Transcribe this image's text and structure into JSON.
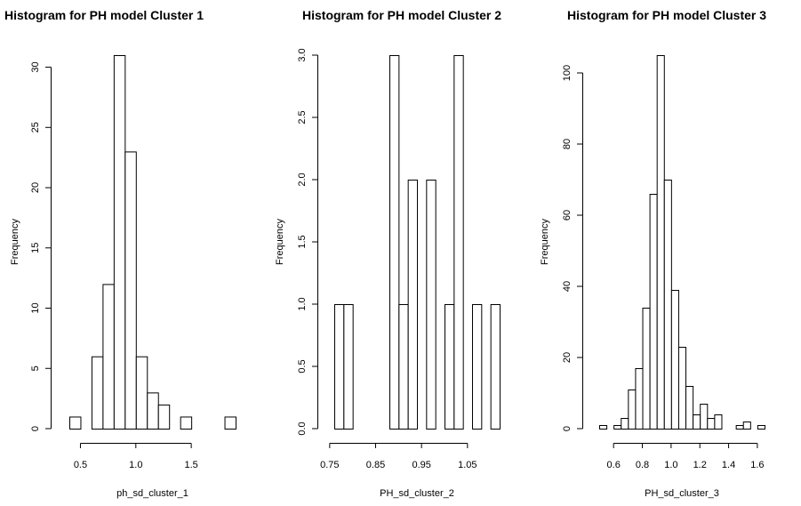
{
  "chart_data": [
    {
      "type": "histogram",
      "title": "Histogram for PH model Cluster 1",
      "xlabel": "ph_sd_cluster_1",
      "ylabel": "Frequency",
      "xlim": [
        0.4,
        1.9
      ],
      "ylim": [
        0,
        31
      ],
      "bin_width": 0.1,
      "bin_edges": [
        0.4,
        0.5,
        0.6,
        0.7,
        0.8,
        0.9,
        1.0,
        1.1,
        1.2,
        1.3,
        1.4,
        1.5,
        1.6,
        1.7,
        1.8,
        1.9
      ],
      "counts": [
        1,
        0,
        6,
        12,
        31,
        23,
        6,
        3,
        2,
        0,
        1,
        0,
        0,
        0,
        1
      ],
      "x_ticks": [
        0.5,
        1.0,
        1.5
      ],
      "x_tick_labels": [
        "0.5",
        "1.0",
        "1.5"
      ],
      "y_ticks": [
        0,
        5,
        10,
        15,
        20,
        25,
        30
      ],
      "y_tick_labels": [
        "0",
        "5",
        "10",
        "15",
        "20",
        "25",
        "30"
      ],
      "grid": false
    },
    {
      "type": "histogram",
      "title": "Histogram for PH model Cluster 2",
      "xlabel": "PH_sd_cluster_2",
      "ylabel": "Frequency",
      "xlim": [
        0.76,
        1.12
      ],
      "ylim": [
        0,
        3
      ],
      "bin_width": 0.02,
      "bin_edges": [
        0.76,
        0.78,
        0.8,
        0.82,
        0.84,
        0.86,
        0.88,
        0.9,
        0.92,
        0.94,
        0.96,
        0.98,
        1.0,
        1.02,
        1.04,
        1.06,
        1.08,
        1.1,
        1.12
      ],
      "counts": [
        1,
        1,
        0,
        0,
        0,
        0,
        3,
        1,
        2,
        0,
        2,
        0,
        1,
        3,
        0,
        1,
        0,
        1
      ],
      "x_ticks": [
        0.75,
        0.85,
        0.95,
        1.05
      ],
      "x_tick_labels": [
        "0.75",
        "0.85",
        "0.95",
        "1.05"
      ],
      "y_ticks": [
        0,
        0.5,
        1,
        1.5,
        2,
        2.5,
        3
      ],
      "y_tick_labels": [
        "0.0",
        "0.5",
        "1.0",
        "1.5",
        "2.0",
        "2.5",
        "3.0"
      ],
      "grid": false
    },
    {
      "type": "histogram",
      "title": "Histogram for PH model Cluster 3",
      "xlabel": "PH_sd_cluster_3",
      "ylabel": "Frequency",
      "xlim": [
        0.5,
        1.65
      ],
      "ylim": [
        0,
        105
      ],
      "bin_width": 0.05,
      "bin_edges": [
        0.5,
        0.55,
        0.6,
        0.65,
        0.7,
        0.75,
        0.8,
        0.85,
        0.9,
        0.95,
        1.0,
        1.05,
        1.1,
        1.15,
        1.2,
        1.25,
        1.3,
        1.35,
        1.4,
        1.45,
        1.5,
        1.55,
        1.6,
        1.65
      ],
      "counts": [
        1,
        0,
        1,
        3,
        11,
        17,
        34,
        66,
        105,
        70,
        39,
        23,
        12,
        4,
        7,
        3,
        4,
        0,
        0,
        1,
        2,
        0,
        1
      ],
      "x_ticks": [
        0.6,
        0.8,
        1.0,
        1.2,
        1.4,
        1.6
      ],
      "x_tick_labels": [
        "0.6",
        "0.8",
        "1.0",
        "1.2",
        "1.4",
        "1.6"
      ],
      "y_ticks": [
        0,
        20,
        40,
        60,
        80,
        100
      ],
      "y_tick_labels": [
        "0",
        "20",
        "40",
        "60",
        "80",
        "100"
      ],
      "grid": false
    }
  ]
}
